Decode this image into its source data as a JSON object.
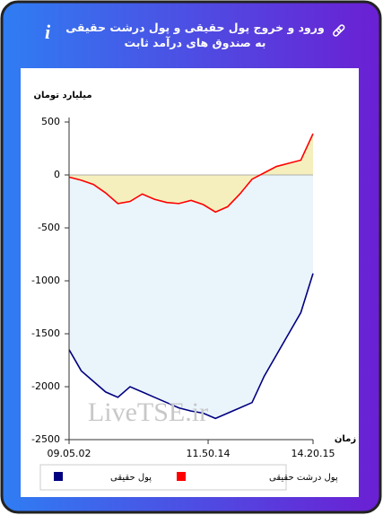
{
  "chart_data": {
    "type": "line",
    "title": "ورود و خروج پول حقیقی و پول درشت حقیقی به صندوق های درآمد ثابت",
    "y_label": "میلیارد تومان",
    "x_label": "زمان",
    "watermark": "LiveTSE.ir",
    "x": [
      0,
      5,
      10,
      15,
      20,
      25,
      30,
      35,
      40,
      45,
      50,
      55,
      60,
      65,
      70,
      75,
      80,
      85,
      90,
      95,
      100
    ],
    "xlim": [
      0,
      100
    ],
    "xticks": [
      {
        "value": 0,
        "label": "09.05.02"
      },
      {
        "value": 57,
        "label": "11.50.14"
      },
      {
        "value": 100,
        "label": "14.20.15"
      }
    ],
    "ylim": [
      -2500,
      500
    ],
    "yticks": [
      500,
      0,
      -500,
      -1000,
      -1500,
      -2000,
      -2500
    ],
    "series": [
      {
        "name": "پول حقیقی",
        "color": "#000080",
        "fill": "#eaf4fb",
        "values": [
          -1650,
          -1850,
          -1950,
          -2050,
          -2100,
          -2000,
          -2050,
          -2100,
          -2150,
          -2200,
          -2230,
          -2250,
          -2300,
          -2250,
          -2200,
          -2150,
          -1900,
          -1700,
          -1500,
          -1300,
          -930
        ]
      },
      {
        "name": "پول درشت حقیقی",
        "color": "#ff0000",
        "fill": "#f5efbe",
        "values": [
          -20,
          -50,
          -90,
          -170,
          -270,
          -250,
          -180,
          -230,
          -260,
          -270,
          -240,
          -280,
          -350,
          -300,
          -180,
          -40,
          20,
          80,
          110,
          140,
          390
        ]
      }
    ]
  }
}
